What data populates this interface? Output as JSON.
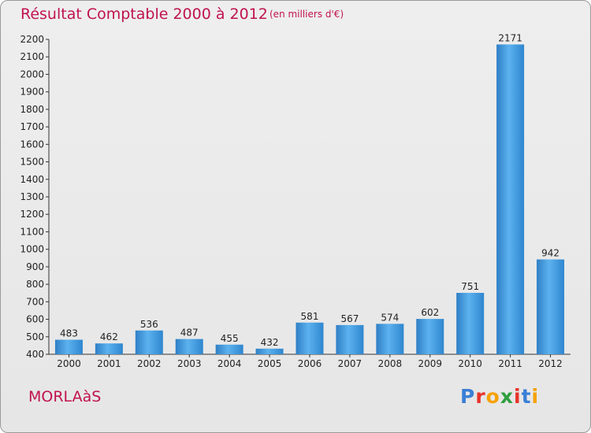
{
  "header": {
    "title": "Résultat Comptable 2000 à 2012",
    "subtitle": "(en milliers d'€)"
  },
  "commune": "MORLAàS",
  "logo": {
    "text": "Proxiti",
    "letters": [
      "P",
      "r",
      "o",
      "x",
      "i",
      "t",
      "i"
    ],
    "colors": [
      "#3a7fd5",
      "#e8332a",
      "#f6a100",
      "#2e9e3e",
      "#e8332a",
      "#3a7fd5",
      "#f6a100"
    ]
  },
  "colors": {
    "accent": "#c0134f",
    "bar": "#3a90d8"
  },
  "chart_data": {
    "type": "bar",
    "title": "Résultat Comptable 2000 à 2012",
    "xlabel": "",
    "ylabel": "",
    "ylim": [
      400,
      2200
    ],
    "ytick_step": 100,
    "grid": false,
    "categories": [
      "2000",
      "2001",
      "2002",
      "2003",
      "2004",
      "2005",
      "2006",
      "2007",
      "2008",
      "2009",
      "2010",
      "2011",
      "2012"
    ],
    "values": [
      483,
      462,
      536,
      487,
      455,
      432,
      581,
      567,
      574,
      602,
      751,
      2171,
      942
    ]
  }
}
